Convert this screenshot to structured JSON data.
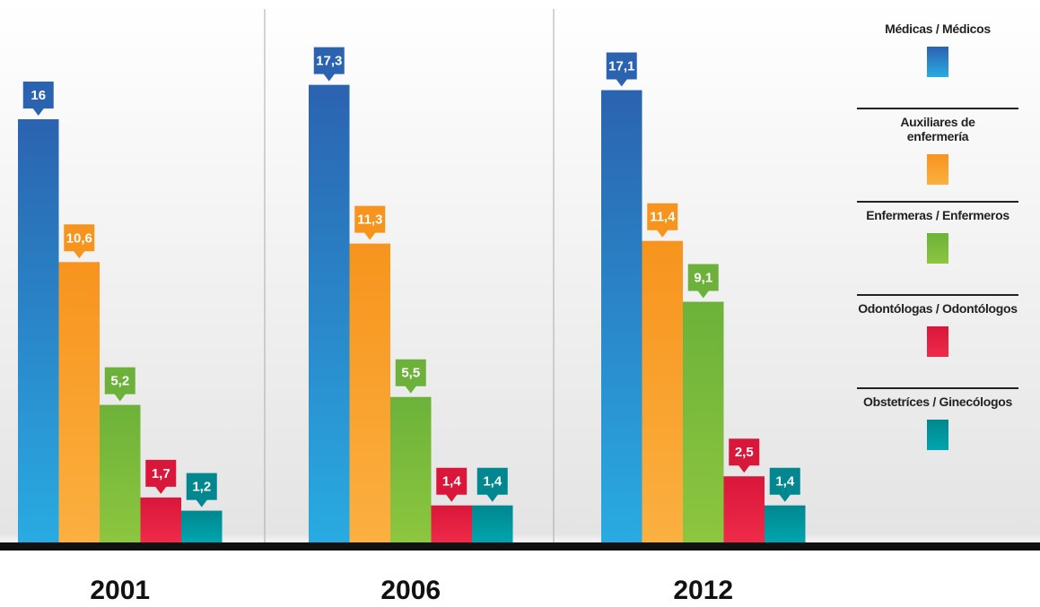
{
  "chart_data": {
    "type": "bar",
    "categories": [
      "2001",
      "2006",
      "2012"
    ],
    "series": [
      {
        "name": "Médicas / Médicos",
        "color": "#2b63b0",
        "values": [
          16,
          17.3,
          17.1
        ],
        "value_labels": [
          "16",
          "17,3",
          "17,1"
        ]
      },
      {
        "name": "Auxiliares de enfermería",
        "color": "#f7941d",
        "values": [
          10.6,
          11.3,
          11.4
        ],
        "value_labels": [
          "10,6",
          "11,3",
          "11,4"
        ]
      },
      {
        "name": "Enfermeras / Enfermeros",
        "color": "#6cb23a",
        "values": [
          5.2,
          5.5,
          9.1
        ],
        "value_labels": [
          "5,2",
          "5,5",
          "9,1"
        ]
      },
      {
        "name": "Odontólogas / Odontólogos",
        "color": "#d9173a",
        "values": [
          1.7,
          1.4,
          2.5
        ],
        "value_labels": [
          "1,7",
          "1,4",
          "2,5"
        ]
      },
      {
        "name": "Obstetríces / Ginecólogos",
        "color": "#00878f",
        "values": [
          1.2,
          1.4,
          1.4
        ],
        "value_labels": [
          "1,2",
          "1,4",
          "1,4"
        ]
      }
    ]
  }
}
